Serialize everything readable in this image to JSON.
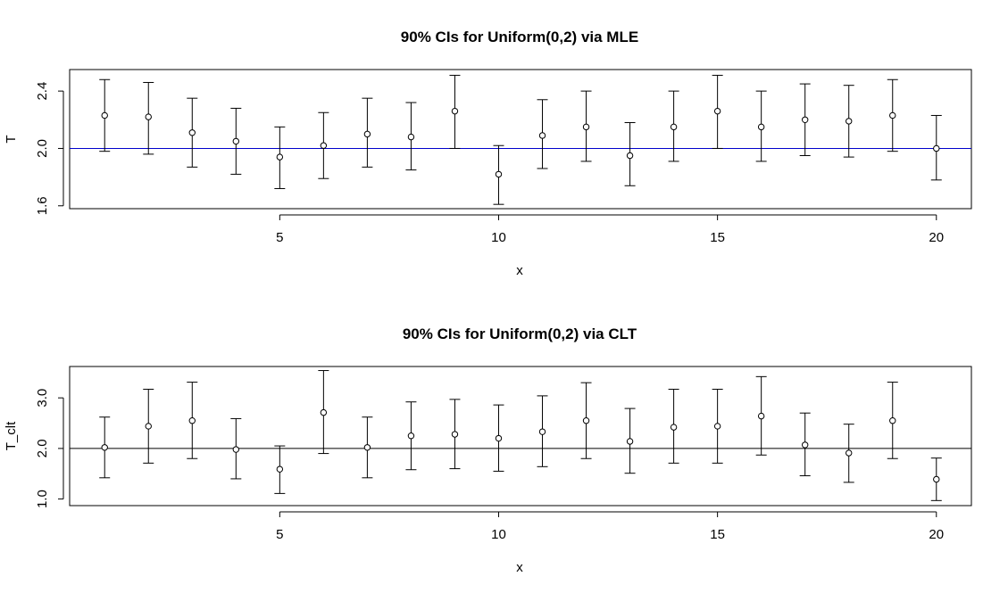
{
  "chart_data": [
    {
      "type": "scatter",
      "title": "90% CIs for Uniform(0,2) via MLE",
      "xlabel": "x",
      "ylabel": "T",
      "x": [
        1,
        2,
        3,
        4,
        5,
        6,
        7,
        8,
        9,
        10,
        11,
        12,
        13,
        14,
        15,
        16,
        17,
        18,
        19,
        20
      ],
      "estimate": [
        2.23,
        2.22,
        2.11,
        2.05,
        1.94,
        2.02,
        2.1,
        2.08,
        2.26,
        1.82,
        2.09,
        2.15,
        1.95,
        2.15,
        2.26,
        2.15,
        2.2,
        2.19,
        2.23,
        2.0
      ],
      "lower": [
        1.98,
        1.96,
        1.87,
        1.82,
        1.72,
        1.79,
        1.87,
        1.85,
        2.0,
        1.61,
        1.86,
        1.91,
        1.74,
        1.91,
        2.0,
        1.91,
        1.95,
        1.94,
        1.98,
        1.78
      ],
      "upper": [
        2.48,
        2.46,
        2.35,
        2.28,
        2.15,
        2.25,
        2.35,
        2.32,
        2.51,
        2.02,
        2.34,
        2.4,
        2.18,
        2.4,
        2.51,
        2.4,
        2.45,
        2.44,
        2.48,
        2.23
      ],
      "reference_line": 2.0,
      "reference_color": "#0000cc",
      "xlim": [
        0.2,
        20.8
      ],
      "ylim": [
        1.58,
        2.55
      ],
      "xticks": [
        5,
        10,
        15,
        20
      ],
      "yticks": [
        1.6,
        2.0,
        2.4
      ],
      "xtick_labels": [
        "5",
        "10",
        "15",
        "20"
      ],
      "ytick_labels": [
        "1.6",
        "2.0",
        "2.4"
      ],
      "grid": false
    },
    {
      "type": "scatter",
      "title": "90% CIs for Uniform(0,2) via CLT",
      "xlabel": "x",
      "ylabel": "T_clt",
      "x": [
        1,
        2,
        3,
        4,
        5,
        6,
        7,
        8,
        9,
        10,
        11,
        12,
        13,
        14,
        15,
        16,
        17,
        18,
        19,
        20
      ],
      "estimate": [
        2.02,
        2.44,
        2.55,
        1.98,
        1.59,
        2.71,
        2.02,
        2.25,
        2.28,
        2.2,
        2.33,
        2.55,
        2.14,
        2.42,
        2.44,
        2.64,
        2.07,
        1.91,
        2.55,
        1.39
      ],
      "lower": [
        1.42,
        1.71,
        1.8,
        1.4,
        1.11,
        1.9,
        1.42,
        1.58,
        1.6,
        1.55,
        1.64,
        1.8,
        1.51,
        1.71,
        1.71,
        1.87,
        1.46,
        1.33,
        1.8,
        0.97
      ],
      "upper": [
        2.62,
        3.17,
        3.31,
        2.59,
        2.05,
        3.54,
        2.62,
        2.92,
        2.97,
        2.86,
        3.04,
        3.3,
        2.79,
        3.17,
        3.17,
        3.42,
        2.7,
        2.48,
        3.31,
        1.81
      ],
      "reference_line": 2.0,
      "reference_color": "#000000",
      "xlim": [
        0.2,
        20.8
      ],
      "ylim": [
        0.87,
        3.62
      ],
      "xticks": [
        5,
        10,
        15,
        20
      ],
      "yticks": [
        1.0,
        2.0,
        3.0
      ],
      "xtick_labels": [
        "5",
        "10",
        "15",
        "20"
      ],
      "ytick_labels": [
        "1.0",
        "2.0",
        "3.0"
      ],
      "grid": false
    }
  ]
}
